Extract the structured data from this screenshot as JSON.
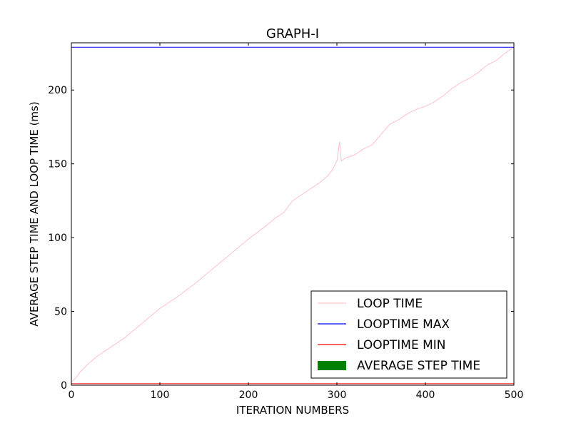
{
  "chart_data": {
    "type": "line",
    "title": "GRAPH-I",
    "xlabel": "ITERATION NUMBERS",
    "ylabel": "AVERAGE STEP TIME AND LOOP TIME (ms)",
    "xlim": [
      0,
      500
    ],
    "ylim": [
      0,
      232
    ],
    "xticks": [
      0,
      100,
      200,
      300,
      400,
      500
    ],
    "yticks": [
      0,
      50,
      100,
      150,
      200
    ],
    "grid": false,
    "legend_position": "lower-right",
    "legend": [
      {
        "label": "LOOP TIME",
        "color": "#ffc0cb",
        "kind": "line"
      },
      {
        "label": "LOOPTIME MAX",
        "color": "#0000ff",
        "kind": "line"
      },
      {
        "label": "LOOPTIME MIN",
        "color": "#ff0000",
        "kind": "line"
      },
      {
        "label": "AVERAGE STEP TIME",
        "color": "#008000",
        "kind": "patch"
      }
    ],
    "series": [
      {
        "name": "LOOP TIME",
        "color": "#ffc0cb",
        "x": [
          0,
          5,
          10,
          20,
          30,
          40,
          45,
          50,
          60,
          80,
          100,
          120,
          140,
          160,
          180,
          200,
          220,
          230,
          240,
          245,
          250,
          260,
          270,
          280,
          290,
          295,
          300,
          302,
          303,
          305,
          310,
          320,
          330,
          340,
          350,
          360,
          370,
          380,
          390,
          400,
          410,
          420,
          430,
          440,
          450,
          460,
          470,
          480,
          490,
          500
        ],
        "y": [
          2,
          5,
          9,
          15,
          20,
          24,
          26,
          28,
          32,
          42,
          52,
          60,
          69,
          79,
          89,
          99,
          108,
          113,
          117,
          121,
          125,
          129,
          133,
          137,
          142,
          146,
          152,
          160,
          165,
          152,
          154,
          156,
          160,
          163,
          170,
          177,
          180,
          184,
          187,
          189,
          192,
          196,
          201,
          205,
          208,
          212,
          217,
          220,
          225,
          229
        ]
      },
      {
        "name": "LOOPTIME MAX",
        "color": "#0000ff",
        "x": [
          0,
          500
        ],
        "y": [
          229,
          229
        ]
      },
      {
        "name": "LOOPTIME MIN",
        "color": "#ff0000",
        "x": [
          0,
          500
        ],
        "y": [
          1,
          1
        ]
      }
    ]
  }
}
